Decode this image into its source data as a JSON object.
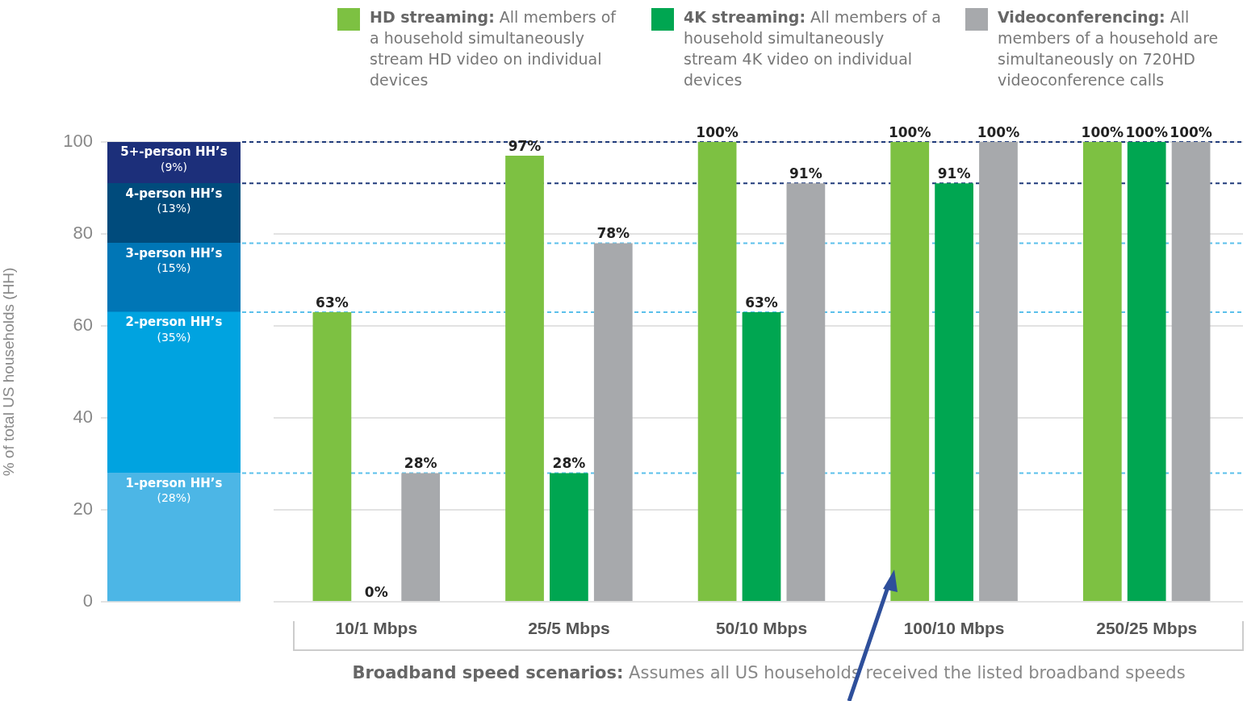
{
  "chart_data": [
    {
      "type": "bar",
      "stacked": true,
      "categories": [
        null
      ],
      "ylabel": "% of total US households (HH)",
      "ylim": [
        0,
        100
      ],
      "yticks": [
        0,
        20,
        40,
        60,
        80,
        100
      ],
      "grid": "y",
      "tick_labels": "y",
      "legend": false,
      "series": [
        {
          "name": "1-person HH’s",
          "color": "#4cb6e6",
          "values": [
            28
          ],
          "value_labels": [
            "(28%)"
          ]
        },
        {
          "name": "2-person HH’s",
          "color": "#00a3e0",
          "values": [
            35
          ],
          "value_labels": [
            "(35%)"
          ]
        },
        {
          "name": "3-person HH’s",
          "color": "#0076b6",
          "values": [
            15
          ],
          "value_labels": [
            "(15%)"
          ]
        },
        {
          "name": "4-person HH’s",
          "color": "#004b7c",
          "values": [
            13
          ],
          "value_labels": [
            "(13%)"
          ]
        },
        {
          "name": "5+-person HH’s",
          "color": "#1c2f7a",
          "values": [
            9
          ],
          "value_labels": [
            "(9%)"
          ]
        }
      ]
    },
    {
      "type": "bar",
      "categories": [
        "10/1 Mbps",
        "25/5 Mbps",
        "50/10 Mbps",
        "100/10 Mbps",
        "250/25 Mbps"
      ],
      "xlabel": "Broadband speed scenarios: Assumes all US households received the listed broadband speeds",
      "ylim": [
        0,
        100
      ],
      "yticks": [
        0,
        20,
        40,
        60,
        80,
        100
      ],
      "grid": "y",
      "tick_labels": "x",
      "legend": "top",
      "series": [
        {
          "name": "HD streaming: All members of a household simultaneously stream HD video on individual devices",
          "color": "#7dc142",
          "values": [
            63,
            97,
            100,
            100,
            100
          ],
          "value_labels": [
            "63%",
            "97%",
            "100%",
            "100%",
            "100%"
          ]
        },
        {
          "name": "4K streaming: All members of a household simultaneously stream 4K video on individual devices",
          "color": "#00a651",
          "values": [
            0,
            28,
            63,
            91,
            100
          ],
          "value_labels": [
            "0%",
            "28%",
            "63%",
            "91%",
            "100%"
          ]
        },
        {
          "name": "Videoconferencing: All members of a household are simultaneously on 720HD videoconference calls",
          "color": "#a7a9ac",
          "values": [
            28,
            78,
            91,
            100,
            100
          ],
          "value_labels": [
            "28%",
            "78%",
            "91%",
            "100%",
            "100%"
          ]
        }
      ],
      "ref_lines": [
        {
          "axis": "y",
          "value": 28,
          "color": "#5bc0eb",
          "line_style": "dashed"
        },
        {
          "axis": "y",
          "value": 63,
          "color": "#5bc0eb",
          "line_style": "dashed"
        },
        {
          "axis": "y",
          "value": 78,
          "color": "#5bc0eb",
          "line_style": "dashed"
        },
        {
          "axis": "y",
          "value": 91,
          "color": "#1f3a7a",
          "line_style": "dashed"
        },
        {
          "axis": "y",
          "value": 100,
          "color": "#1f3a7a",
          "line_style": "dashed"
        }
      ]
    }
  ]
}
